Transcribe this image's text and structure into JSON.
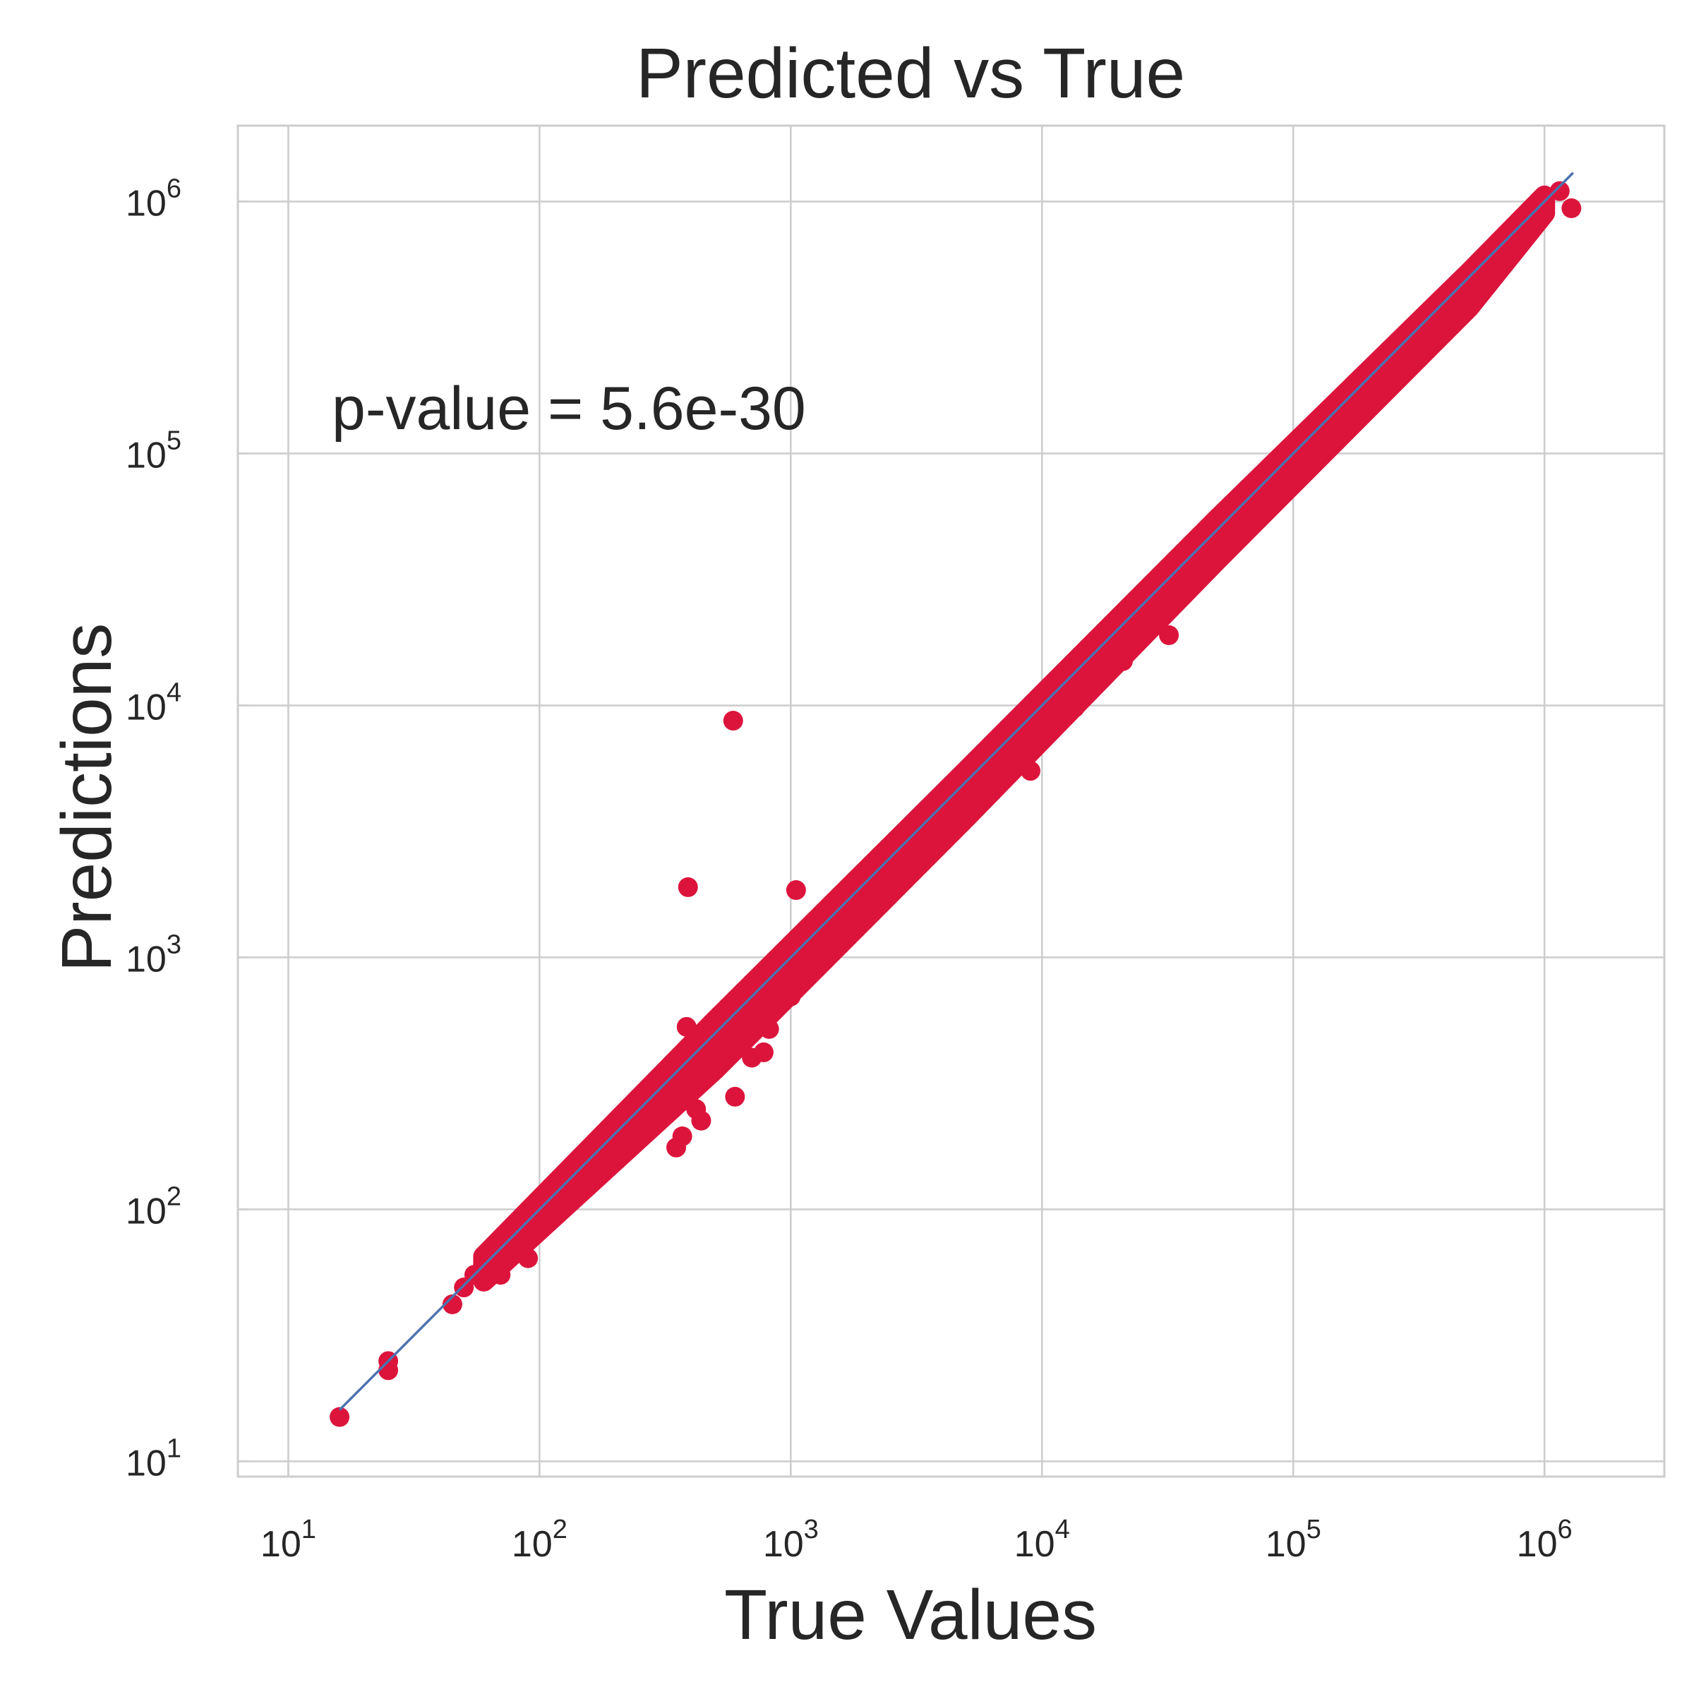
{
  "chart_data": {
    "type": "scatter",
    "title": "Predicted vs True",
    "xlabel": "True Values",
    "ylabel": "Predictions",
    "xscale": "log",
    "yscale": "log",
    "xlim": [
      6.3,
      3000000
    ],
    "ylim": [
      8.7,
      2000000
    ],
    "grid": true,
    "annotation": "p-value = 5.6e-30",
    "xticks": [
      {
        "value": 10,
        "base": "10",
        "exp": "1"
      },
      {
        "value": 100,
        "base": "10",
        "exp": "2"
      },
      {
        "value": 1000,
        "base": "10",
        "exp": "3"
      },
      {
        "value": 10000,
        "base": "10",
        "exp": "4"
      },
      {
        "value": 100000,
        "base": "10",
        "exp": "5"
      },
      {
        "value": 1000000,
        "base": "10",
        "exp": "6"
      }
    ],
    "yticks": [
      {
        "value": 10,
        "base": "10",
        "exp": "1"
      },
      {
        "value": 100,
        "base": "10",
        "exp": "2"
      },
      {
        "value": 1000,
        "base": "10",
        "exp": "3"
      },
      {
        "value": 10000,
        "base": "10",
        "exp": "4"
      },
      {
        "value": 100000,
        "base": "10",
        "exp": "5"
      },
      {
        "value": 1000000,
        "base": "10",
        "exp": "6"
      }
    ],
    "fit_line": {
      "x": [
        16,
        1300000
      ],
      "y": [
        16,
        1300000
      ],
      "color": "#4c72b0"
    },
    "point_color": "#dc143c",
    "points": [
      [
        16,
        15
      ],
      [
        25,
        25
      ],
      [
        25,
        23
      ],
      [
        45,
        42
      ],
      [
        50,
        49
      ],
      [
        55,
        55
      ],
      [
        62,
        63
      ],
      [
        65,
        62
      ],
      [
        70,
        55
      ],
      [
        72,
        70
      ],
      [
        80,
        78
      ],
      [
        85,
        84
      ],
      [
        90,
        64
      ],
      [
        95,
        90
      ],
      [
        100,
        105
      ],
      [
        110,
        104
      ],
      [
        125,
        126
      ],
      [
        135,
        130
      ],
      [
        150,
        145
      ],
      [
        160,
        140
      ],
      [
        170,
        150
      ],
      [
        185,
        175
      ],
      [
        200,
        160
      ],
      [
        220,
        205
      ],
      [
        240,
        250
      ],
      [
        270,
        210
      ],
      [
        300,
        260
      ],
      [
        330,
        300
      ],
      [
        350,
        176
      ],
      [
        370,
        195
      ],
      [
        385,
        530
      ],
      [
        390,
        1900
      ],
      [
        420,
        250
      ],
      [
        440,
        225
      ],
      [
        470,
        440
      ],
      [
        520,
        480
      ],
      [
        560,
        560
      ],
      [
        590,
        8700
      ],
      [
        600,
        280
      ],
      [
        640,
        470
      ],
      [
        700,
        400
      ],
      [
        780,
        420
      ],
      [
        820,
        520
      ],
      [
        900,
        780
      ],
      [
        950,
        900
      ],
      [
        1000,
        700
      ],
      [
        1050,
        1850
      ],
      [
        1100,
        1050
      ],
      [
        1200,
        1100
      ],
      [
        1300,
        1050
      ],
      [
        1500,
        1400
      ],
      [
        1700,
        1400
      ],
      [
        2000,
        1900
      ],
      [
        2400,
        2200
      ],
      [
        2800,
        2200
      ],
      [
        3000,
        2900
      ],
      [
        3500,
        3200
      ],
      [
        4000,
        4200
      ],
      [
        4500,
        3500
      ],
      [
        5500,
        5200
      ],
      [
        6500,
        5800
      ],
      [
        7500,
        7200
      ],
      [
        9000,
        5500
      ],
      [
        10500,
        10500
      ],
      [
        12000,
        11500
      ],
      [
        13500,
        9800
      ],
      [
        15000,
        14500
      ],
      [
        18000,
        17500
      ],
      [
        21000,
        15000
      ],
      [
        24000,
        24000
      ],
      [
        27000,
        26000
      ],
      [
        30000,
        28500
      ],
      [
        32000,
        19000
      ],
      [
        36000,
        35000
      ],
      [
        42000,
        40000
      ],
      [
        48000,
        47000
      ],
      [
        55000,
        52000
      ],
      [
        62000,
        56000
      ],
      [
        75000,
        70000
      ],
      [
        85000,
        80000
      ],
      [
        95000,
        93000
      ],
      [
        105000,
        100000
      ],
      [
        115000,
        91000
      ],
      [
        125000,
        120000
      ],
      [
        145000,
        125000
      ],
      [
        165000,
        160000
      ],
      [
        180000,
        150000
      ],
      [
        210000,
        205000
      ],
      [
        245000,
        240000
      ],
      [
        280000,
        260000
      ],
      [
        310000,
        305000
      ],
      [
        345000,
        290000
      ],
      [
        400000,
        370000
      ],
      [
        430000,
        330000
      ],
      [
        460000,
        410000
      ],
      [
        860000,
        740000
      ],
      [
        1150000,
        1100000
      ],
      [
        1280000,
        940000
      ]
    ]
  }
}
